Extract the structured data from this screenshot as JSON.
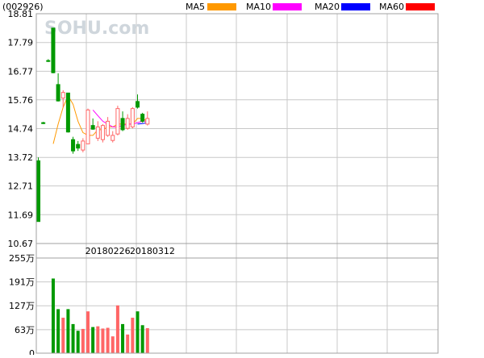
{
  "chart_data": {
    "type": "candlestick",
    "code_label": "(002926)",
    "watermark": "SOHU.com",
    "legend": [
      {
        "name": "MA5",
        "color": "#ff9900"
      },
      {
        "name": "MA10",
        "color": "#ff00ff"
      },
      {
        "name": "MA20",
        "color": "#0000ff"
      },
      {
        "name": "MA60",
        "color": "#ff0000"
      }
    ],
    "price_axis": {
      "ylim": [
        10.67,
        18.81
      ],
      "tick_labels": [
        "18.81",
        "17.79",
        "16.77",
        "15.76",
        "14.74",
        "13.72",
        "12.71",
        "11.69",
        "10.67"
      ],
      "tick_values": [
        18.81,
        17.79,
        16.77,
        15.76,
        14.74,
        13.72,
        12.71,
        11.69,
        10.67
      ]
    },
    "volume_axis": {
      "ylim": [
        0,
        255
      ],
      "tick_labels": [
        "255万",
        "191万",
        "127万",
        "63万",
        "0"
      ],
      "tick_values": [
        255,
        191,
        127,
        63,
        0
      ],
      "unit": "万"
    },
    "date_labels": [
      {
        "label": "20180226",
        "index": 14
      },
      {
        "label": "20180312",
        "index": 23
      }
    ],
    "up_color": "#ff6666",
    "down_color": "#009900",
    "candles": [
      {
        "open": 13.6,
        "high": 13.72,
        "low": 11.45,
        "close": 11.45,
        "volume": 0
      },
      {
        "open": 14.95,
        "high": 14.98,
        "low": 14.9,
        "close": 14.92,
        "volume": 0
      },
      {
        "open": 17.15,
        "high": 17.2,
        "low": 17.1,
        "close": 17.12,
        "volume": 0
      },
      {
        "open": 18.3,
        "high": 18.3,
        "low": 16.7,
        "close": 16.72,
        "volume": 200
      },
      {
        "open": 16.3,
        "high": 16.7,
        "low": 15.7,
        "close": 15.72,
        "volume": 118
      },
      {
        "open": 15.82,
        "high": 16.1,
        "low": 15.5,
        "close": 16.02,
        "volume": 95
      },
      {
        "open": 16.0,
        "high": 16.0,
        "low": 14.6,
        "close": 14.62,
        "volume": 118
      },
      {
        "open": 14.35,
        "high": 14.45,
        "low": 13.85,
        "close": 13.95,
        "volume": 78
      },
      {
        "open": 14.18,
        "high": 14.3,
        "low": 13.95,
        "close": 14.05,
        "volume": 60
      },
      {
        "open": 13.98,
        "high": 14.4,
        "low": 13.9,
        "close": 14.3,
        "volume": 65
      },
      {
        "open": 14.2,
        "high": 15.45,
        "low": 14.2,
        "close": 15.4,
        "volume": 112
      },
      {
        "open": 14.85,
        "high": 15.1,
        "low": 14.7,
        "close": 14.72,
        "volume": 70
      },
      {
        "open": 14.4,
        "high": 15.0,
        "low": 14.3,
        "close": 14.8,
        "volume": 72
      },
      {
        "open": 14.35,
        "high": 14.9,
        "low": 14.25,
        "close": 14.85,
        "volume": 66
      },
      {
        "open": 14.5,
        "high": 15.15,
        "low": 14.45,
        "close": 15.0,
        "volume": 68
      },
      {
        "open": 14.32,
        "high": 14.65,
        "low": 14.25,
        "close": 14.5,
        "volume": 45
      },
      {
        "open": 14.55,
        "high": 15.55,
        "low": 14.5,
        "close": 15.45,
        "volume": 128
      },
      {
        "open": 15.1,
        "high": 15.35,
        "low": 14.65,
        "close": 14.7,
        "volume": 78
      },
      {
        "open": 14.75,
        "high": 15.25,
        "low": 14.7,
        "close": 15.1,
        "volume": 50
      },
      {
        "open": 14.8,
        "high": 15.5,
        "low": 14.75,
        "close": 15.45,
        "volume": 95
      },
      {
        "open": 15.7,
        "high": 15.95,
        "low": 15.45,
        "close": 15.5,
        "volume": 112
      },
      {
        "open": 15.25,
        "high": 15.3,
        "low": 14.95,
        "close": 15.0,
        "volume": 75
      },
      {
        "open": 14.9,
        "high": 15.35,
        "low": 14.85,
        "close": 15.1,
        "volume": 67
      }
    ],
    "ma5": [
      null,
      null,
      null,
      14.2,
      14.9,
      15.5,
      15.9,
      15.6,
      15.0,
      14.6,
      14.5,
      14.5,
      14.7,
      14.7,
      14.8,
      14.8,
      14.9,
      14.9,
      14.9,
      14.9,
      15.1,
      15.1,
      15.0
    ],
    "ma10": [
      null,
      null,
      null,
      null,
      null,
      null,
      null,
      null,
      null,
      null,
      null,
      15.4,
      15.2,
      15.0,
      14.9,
      14.8,
      14.8,
      14.85,
      14.9,
      14.9,
      14.95,
      15.0,
      15.0
    ],
    "ma20": [
      null,
      null,
      null,
      null,
      null,
      null,
      null,
      null,
      null,
      null,
      null,
      null,
      null,
      null,
      null,
      null,
      null,
      null,
      null,
      null,
      14.9,
      14.92,
      14.95
    ]
  }
}
